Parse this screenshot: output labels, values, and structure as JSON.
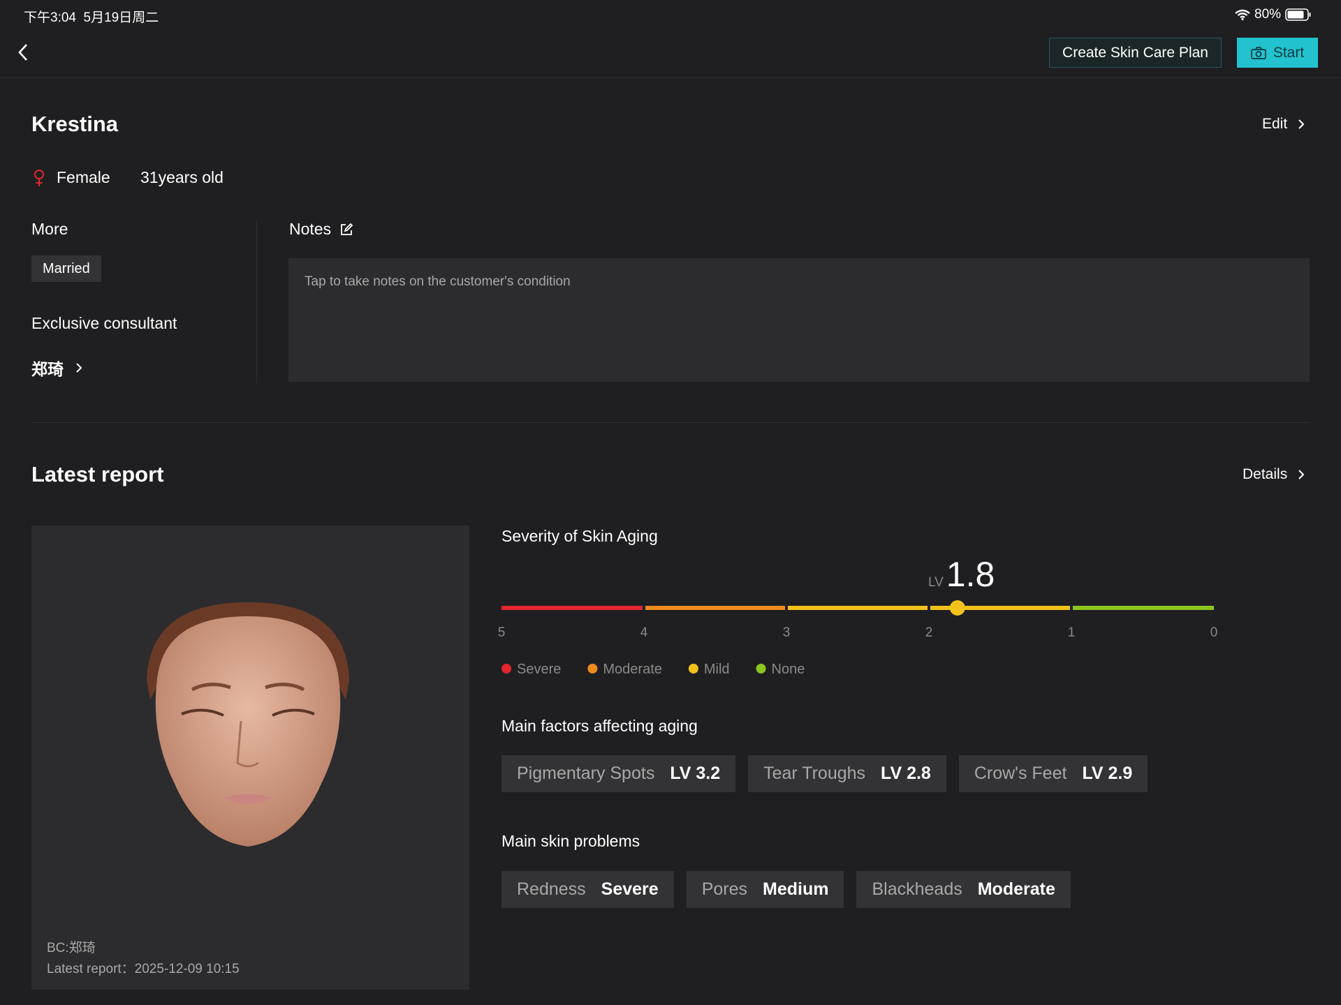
{
  "status_bar": {
    "time": "下午3:04",
    "date": "5月19日周二",
    "battery": "80%"
  },
  "header": {
    "create_plan": "Create Skin Care Plan",
    "start": "Start"
  },
  "profile": {
    "name": "Krestina",
    "edit": "Edit",
    "gender": "Female",
    "age": "31years old",
    "more_label": "More",
    "tags": [
      "Married"
    ],
    "consultant_label": "Exclusive consultant",
    "consultant": "郑琦",
    "notes_label": "Notes",
    "notes_placeholder": "Tap to take notes on the customer's condition"
  },
  "report": {
    "title": "Latest report",
    "details": "Details",
    "bc": "BC:郑琦",
    "report_time": "Latest report：2025-12-09 10:15",
    "factors_title": "Main factors affecting aging",
    "factors": [
      {
        "name": "Pigmentary Spots",
        "level": "LV 3.2"
      },
      {
        "name": "Tear Troughs",
        "level": "LV 2.8"
      },
      {
        "name": "Crow's Feet",
        "level": "LV 2.9"
      }
    ],
    "problems_title": "Main skin problems",
    "problems": [
      {
        "name": "Redness",
        "level": "Severe"
      },
      {
        "name": "Pores",
        "level": "Medium"
      },
      {
        "name": "Blackheads",
        "level": "Moderate"
      }
    ]
  },
  "chart_data": {
    "type": "gauge",
    "title": "Severity of Skin Aging",
    "value_prefix": "LV",
    "value": 1.8,
    "xlim": [
      5,
      0
    ],
    "xticks": [
      5,
      4,
      3,
      2,
      1,
      0
    ],
    "segment_colors": [
      "#e5262f",
      "#ef8a1f",
      "#f2c21b",
      "#f2c21b",
      "#8cc520"
    ],
    "marker_color": "#f2c21b",
    "legend": [
      {
        "name": "Severe",
        "color": "#e5262f"
      },
      {
        "name": "Moderate",
        "color": "#ef8a1f"
      },
      {
        "name": "Mild",
        "color": "#f2c21b"
      },
      {
        "name": "None",
        "color": "#8cc520"
      }
    ]
  }
}
